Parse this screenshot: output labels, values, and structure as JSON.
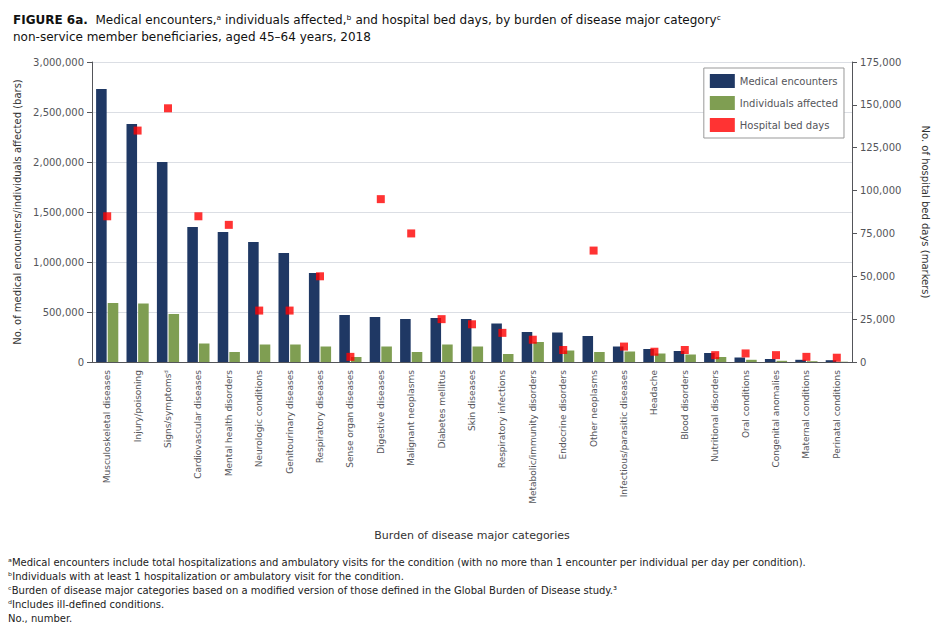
{
  "chart_data": {
    "type": "bar",
    "title": "FIGURE 6a.",
    "subtitle": "Medical encounters,ᵃ individuals affected,ᵇ and hospital bed days, by burden of disease major categoryᶜ non-service member beneficiaries, aged 45–64 years, 2018",
    "xlabel": "Burden of disease major categories",
    "ylabel": "No. of medical encounters/individuals affected (bars)",
    "y2label": "No. of hospital bed days (markers)",
    "categories": [
      "Musculoskeletal diseases",
      "Injury/poisoning",
      "Signs/symptomsᵈ",
      "Cardiovascular diseases",
      "Mental health disorders",
      "Neurologic conditions",
      "Genitourinary diseases",
      "Respiratory diseases",
      "Sense organ diseases",
      "Digestive diseases",
      "Malignant neoplasms",
      "Diabetes mellitus",
      "Skin diseases",
      "Respiratory infections",
      "Metabolic/immunity disorders",
      "Endocrine disorders",
      "Other neoplasms",
      "Infectious/parasitic diseases",
      "Headache",
      "Blood disorders",
      "Nutritional disorders",
      "Oral conditions",
      "Congenital anomalies",
      "Maternal conditions",
      "Perinatal conditions"
    ],
    "series": [
      {
        "name": "Medical encounters",
        "type": "bar",
        "color": "#1f3864",
        "values": [
          2730000,
          2380000,
          2000000,
          1350000,
          1300000,
          1200000,
          1090000,
          890000,
          470000,
          450000,
          430000,
          440000,
          430000,
          385000,
          300000,
          295000,
          260000,
          155000,
          130000,
          110000,
          90000,
          45000,
          30000,
          22000,
          18000
        ]
      },
      {
        "name": "Individuals affected",
        "type": "bar",
        "color": "#7f9e52",
        "values": [
          590000,
          585000,
          480000,
          185000,
          100000,
          175000,
          175000,
          155000,
          50000,
          155000,
          100000,
          175000,
          155000,
          80000,
          200000,
          115000,
          100000,
          105000,
          85000,
          75000,
          50000,
          22000,
          12000,
          8000,
          3000
        ]
      },
      {
        "name": "Hospital bed days",
        "type": "scatter",
        "marker": "square",
        "color": "#ff0000",
        "axis": "y2",
        "values": [
          85000,
          135000,
          148000,
          85000,
          80000,
          30000,
          30000,
          50000,
          3000,
          95000,
          75000,
          25000,
          22000,
          17000,
          13000,
          7000,
          65000,
          9000,
          6000,
          7000,
          4000,
          5000,
          4000,
          3000,
          2500
        ]
      }
    ],
    "ylim": [
      0,
      3000000
    ],
    "yticks": [
      0,
      {
        "value": 500000,
        "label": "500,000"
      },
      {
        "value": 1000000,
        "label": "1,000,000"
      },
      {
        "value": 1500000,
        "label": "1,500,000"
      },
      {
        "value": 2000000,
        "label": "2,000,000"
      },
      {
        "value": 2500000,
        "label": "2,500,000"
      },
      {
        "value": 3000000,
        "label": "3,000,000"
      }
    ],
    "y2lim": [
      0,
      175000
    ],
    "y2ticks": [
      0,
      {
        "value": 25000,
        "label": "25,000"
      },
      {
        "value": 50000,
        "label": "50,000"
      },
      {
        "value": 75000,
        "label": "75,000"
      },
      {
        "value": 100000,
        "label": "100,000"
      },
      {
        "value": 125000,
        "label": "125,000"
      },
      {
        "value": 150000,
        "label": "150,000"
      },
      {
        "value": 175000,
        "label": "175,000"
      }
    ],
    "grid": true,
    "legend": "upper right",
    "annotations": [
      "ᵃMedical encounters include total hospitalizations and ambulatory visits for the condition (with no more than 1 encounter per individual per day per condition).",
      "ᵇIndividuals with at least 1 hospitalization or ambulatory visit for the condition.",
      "ᶜBurden of disease major categories based on a modified version of those defined in the Global Burden of Disease study.³",
      "ᵈIncludes ill-defined conditions.",
      "No., number."
    ]
  }
}
